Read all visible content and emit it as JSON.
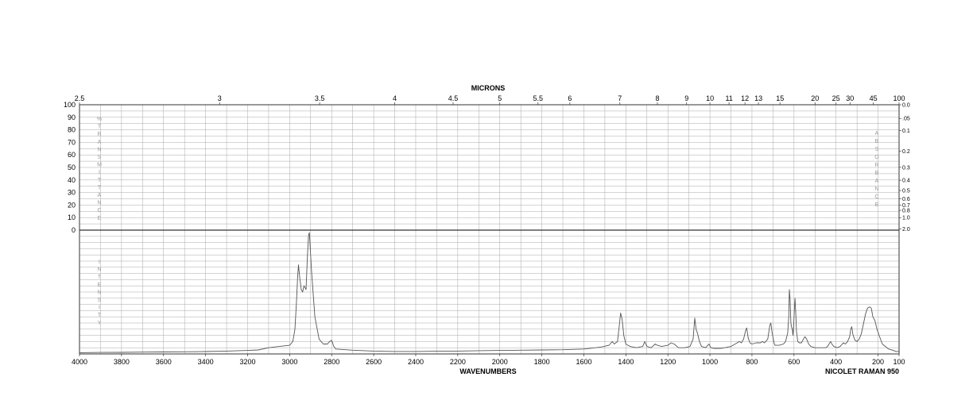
{
  "chart_data": {
    "type": "line",
    "top_axis_title": "MICRONS",
    "xlabel": "WAVENUMBERS",
    "instrument": "NICOLET RAMAN 950",
    "left_vertical_label_upper": "%TRANSMITTANCE",
    "left_vertical_label_lower": "INTENSITY",
    "right_vertical_label": "ABSORBANCE",
    "x_range": [
      4000,
      100
    ],
    "wavenumber_ticks": [
      4000,
      3800,
      3600,
      3400,
      3200,
      3000,
      2800,
      2600,
      2400,
      2200,
      2000,
      1800,
      1600,
      1400,
      1200,
      1000,
      800,
      600,
      400,
      200,
      100
    ],
    "micron_ticks": [
      {
        "label": "2.5",
        "um": 2.5
      },
      {
        "label": "3",
        "um": 3
      },
      {
        "label": "3.5",
        "um": 3.5
      },
      {
        "label": "4",
        "um": 4
      },
      {
        "label": "4.5",
        "um": 4.5
      },
      {
        "label": "5",
        "um": 5
      },
      {
        "label": "5.5",
        "um": 5.5
      },
      {
        "label": "6",
        "um": 6
      },
      {
        "label": "7",
        "um": 7
      },
      {
        "label": "8",
        "um": 8
      },
      {
        "label": "9",
        "um": 9
      },
      {
        "label": "10",
        "um": 10
      },
      {
        "label": "11",
        "um": 11
      },
      {
        "label": "12",
        "um": 12
      },
      {
        "label": "13",
        "um": 13
      },
      {
        "label": "15",
        "um": 15
      },
      {
        "label": "20",
        "um": 20
      },
      {
        "label": "25",
        "um": 25
      },
      {
        "label": "30",
        "um": 30
      },
      {
        "label": "45",
        "um": 45
      },
      {
        "label": "100",
        "um": 100
      }
    ],
    "transmittance_ticks": [
      100,
      90,
      80,
      70,
      60,
      50,
      40,
      30,
      20,
      10,
      0
    ],
    "absorbance_ticks": [
      {
        "label": "0.0",
        "T": 100
      },
      {
        "label": ".05",
        "T": 89.1
      },
      {
        "label": "0.1",
        "T": 79.4
      },
      {
        "label": "0.2",
        "T": 63.1
      },
      {
        "label": "0.3",
        "T": 50.1
      },
      {
        "label": "0.4",
        "T": 39.8
      },
      {
        "label": "0.5",
        "T": 31.6
      },
      {
        "label": "0.6",
        "T": 25.1
      },
      {
        "label": "0.7",
        "T": 20.0
      },
      {
        "label": "0.8",
        "T": 15.8
      },
      {
        "label": "1.0",
        "T": 10.0
      },
      {
        "label": "2.0",
        "T": 1.0
      }
    ],
    "intensity_range": [
      0,
      100
    ],
    "series": [
      {
        "color": "#555555",
        "points": [
          [
            4000,
            1
          ],
          [
            3900,
            1.2
          ],
          [
            3800,
            1.3
          ],
          [
            3700,
            1.5
          ],
          [
            3600,
            1.6
          ],
          [
            3500,
            1.7
          ],
          [
            3400,
            1.9
          ],
          [
            3300,
            2.3
          ],
          [
            3200,
            2.8
          ],
          [
            3150,
            3.2
          ],
          [
            3100,
            5
          ],
          [
            3050,
            6
          ],
          [
            3000,
            7
          ],
          [
            2985,
            10
          ],
          [
            2975,
            20
          ],
          [
            2968,
            40
          ],
          [
            2962,
            62
          ],
          [
            2958,
            72
          ],
          [
            2952,
            62
          ],
          [
            2945,
            52
          ],
          [
            2938,
            50
          ],
          [
            2932,
            55
          ],
          [
            2928,
            54
          ],
          [
            2922,
            52
          ],
          [
            2915,
            80
          ],
          [
            2910,
            96
          ],
          [
            2906,
            98
          ],
          [
            2902,
            85
          ],
          [
            2895,
            65
          ],
          [
            2880,
            30
          ],
          [
            2860,
            12
          ],
          [
            2840,
            8
          ],
          [
            2820,
            8
          ],
          [
            2810,
            10
          ],
          [
            2800,
            11
          ],
          [
            2790,
            6
          ],
          [
            2780,
            4
          ],
          [
            2700,
            3
          ],
          [
            2600,
            2.3
          ],
          [
            2500,
            2
          ],
          [
            2400,
            2
          ],
          [
            2300,
            2.2
          ],
          [
            2200,
            2.3
          ],
          [
            2100,
            2.6
          ],
          [
            2000,
            2.8
          ],
          [
            1900,
            3
          ],
          [
            1800,
            3.2
          ],
          [
            1700,
            3.4
          ],
          [
            1600,
            4
          ],
          [
            1520,
            5.5
          ],
          [
            1480,
            7
          ],
          [
            1465,
            10
          ],
          [
            1455,
            8
          ],
          [
            1440,
            10
          ],
          [
            1430,
            25
          ],
          [
            1425,
            33
          ],
          [
            1418,
            28
          ],
          [
            1410,
            15
          ],
          [
            1400,
            8
          ],
          [
            1380,
            6
          ],
          [
            1350,
            5
          ],
          [
            1320,
            6
          ],
          [
            1310,
            10
          ],
          [
            1300,
            6
          ],
          [
            1280,
            5
          ],
          [
            1260,
            8
          ],
          [
            1250,
            7
          ],
          [
            1230,
            6
          ],
          [
            1200,
            7
          ],
          [
            1185,
            9
          ],
          [
            1170,
            8
          ],
          [
            1150,
            5
          ],
          [
            1120,
            5
          ],
          [
            1095,
            6
          ],
          [
            1080,
            12
          ],
          [
            1072,
            29
          ],
          [
            1066,
            20
          ],
          [
            1062,
            18
          ],
          [
            1058,
            16
          ],
          [
            1050,
            10
          ],
          [
            1040,
            6
          ],
          [
            1020,
            5
          ],
          [
            1005,
            8
          ],
          [
            995,
            5
          ],
          [
            980,
            4.5
          ],
          [
            950,
            4.5
          ],
          [
            930,
            5
          ],
          [
            900,
            6
          ],
          [
            880,
            8
          ],
          [
            860,
            10
          ],
          [
            850,
            9
          ],
          [
            840,
            12
          ],
          [
            830,
            19
          ],
          [
            825,
            21
          ],
          [
            818,
            13
          ],
          [
            810,
            9
          ],
          [
            800,
            8
          ],
          [
            780,
            9
          ],
          [
            760,
            9
          ],
          [
            750,
            10
          ],
          [
            740,
            9
          ],
          [
            725,
            12
          ],
          [
            715,
            23
          ],
          [
            710,
            25
          ],
          [
            705,
            18
          ],
          [
            695,
            9
          ],
          [
            690,
            7
          ],
          [
            670,
            7
          ],
          [
            650,
            8
          ],
          [
            640,
            10
          ],
          [
            630,
            17
          ],
          [
            625,
            30
          ],
          [
            622,
            52
          ],
          [
            619,
            45
          ],
          [
            615,
            25
          ],
          [
            612,
            22
          ],
          [
            608,
            20
          ],
          [
            605,
            15
          ],
          [
            602,
            22
          ],
          [
            598,
            36
          ],
          [
            595,
            45
          ],
          [
            592,
            35
          ],
          [
            588,
            18
          ],
          [
            582,
            10
          ],
          [
            575,
            9
          ],
          [
            565,
            9
          ],
          [
            555,
            12
          ],
          [
            548,
            14
          ],
          [
            540,
            12
          ],
          [
            530,
            8
          ],
          [
            520,
            6
          ],
          [
            500,
            5
          ],
          [
            470,
            5
          ],
          [
            450,
            5
          ],
          [
            440,
            6
          ],
          [
            430,
            9
          ],
          [
            425,
            10
          ],
          [
            420,
            8
          ],
          [
            410,
            6
          ],
          [
            395,
            5
          ],
          [
            380,
            6
          ],
          [
            370,
            8
          ],
          [
            365,
            9
          ],
          [
            355,
            8
          ],
          [
            345,
            10
          ],
          [
            335,
            14
          ],
          [
            330,
            20
          ],
          [
            325,
            22
          ],
          [
            320,
            16
          ],
          [
            310,
            11
          ],
          [
            300,
            10
          ],
          [
            290,
            12
          ],
          [
            280,
            16
          ],
          [
            270,
            24
          ],
          [
            260,
            32
          ],
          [
            250,
            37
          ],
          [
            240,
            38
          ],
          [
            232,
            37
          ],
          [
            225,
            30
          ],
          [
            215,
            27
          ],
          [
            205,
            20
          ],
          [
            195,
            15
          ],
          [
            180,
            8
          ],
          [
            165,
            6
          ],
          [
            150,
            4
          ],
          [
            130,
            3
          ],
          [
            115,
            2
          ],
          [
            100,
            2
          ]
        ]
      }
    ]
  }
}
